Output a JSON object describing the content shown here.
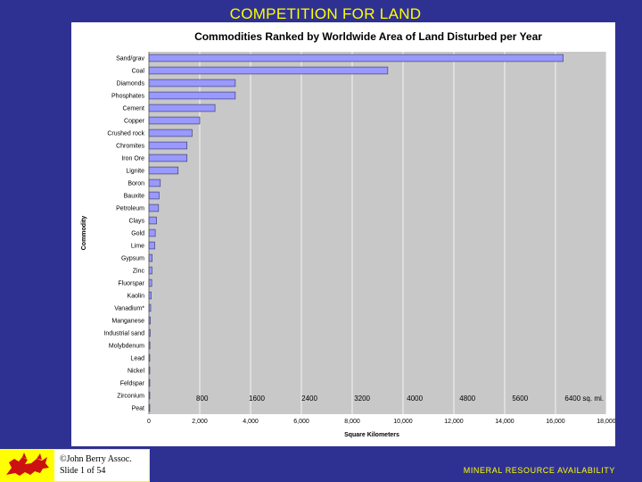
{
  "slide": {
    "title": "COMPETITION FOR LAND",
    "credit_line1": "©John Berry Assoc.",
    "credit_line2": "Slide 1 of  54",
    "footer": "MINERAL RESOURCE AVAILABILITY"
  },
  "colors": {
    "background": "#2e3192",
    "title": "#ffff00",
    "bar_fill": "#9999ff",
    "bar_stroke": "#333366"
  },
  "chart_data": {
    "type": "bar",
    "orientation": "horizontal",
    "title": "Commodities Ranked by Worldwide Area of Land Disturbed per Year",
    "xlabel": "Square Kilometers",
    "ylabel": "Commodity",
    "xlim": [
      0,
      18000
    ],
    "x_ticks": [
      "0",
      "2,000",
      "4,000",
      "6,000",
      "8,000",
      "10,000",
      "12,000",
      "14,000",
      "16,000",
      "18,000"
    ],
    "overlay_ticks": [
      "800",
      "1600",
      "2400",
      "3200",
      "4000",
      "4800",
      "5600",
      "6400 sq. mi."
    ],
    "grid": true,
    "legend": false,
    "categories": [
      "Sand/grav",
      "Coal",
      "Diamonds",
      "Phosphates",
      "Cement",
      "Copper",
      "Crushed rock",
      "Chromites",
      "Iron Ore",
      "Lignite",
      "Boron",
      "Bauxite",
      "Petroleum",
      "Clays",
      "Gold",
      "Lime",
      "Gypsum",
      "Zinc",
      "Fluorspar",
      "Kaolin",
      "Vanadium*",
      "Manganese",
      "Industrial sand",
      "Molybdenum",
      "Lead",
      "Nickel",
      "Feldspar",
      "Zirconium",
      "Peat"
    ],
    "values": [
      16300,
      9400,
      3400,
      3400,
      2600,
      2000,
      1700,
      1500,
      1500,
      1150,
      450,
      400,
      380,
      300,
      250,
      230,
      130,
      120,
      110,
      90,
      70,
      60,
      50,
      40,
      35,
      30,
      25,
      20,
      15
    ]
  }
}
